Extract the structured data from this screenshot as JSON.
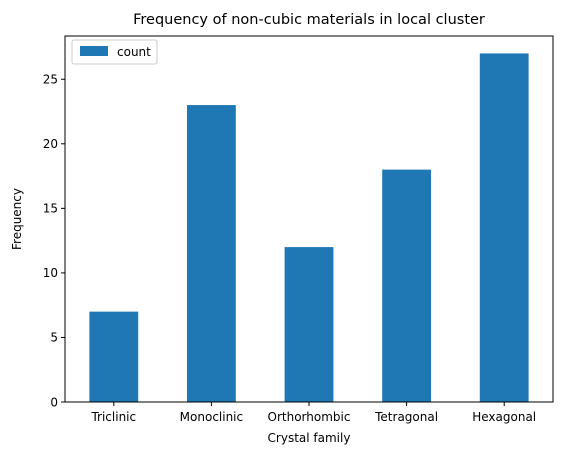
{
  "chart_data": {
    "type": "bar",
    "title": "Frequency of non-cubic materials in local cluster",
    "xlabel": "Crystal family",
    "ylabel": "Frequency",
    "categories": [
      "Triclinic",
      "Monoclinic",
      "Orthorhombic",
      "Tetragonal",
      "Hexagonal"
    ],
    "series": [
      {
        "name": "count",
        "values": [
          7,
          23,
          12,
          18,
          27
        ],
        "color": "#1f77b4"
      }
    ],
    "ylim": [
      0,
      28.35
    ],
    "yticks": [
      0,
      5,
      10,
      15,
      20,
      25
    ],
    "grid": false,
    "legend_position": "top-left"
  }
}
